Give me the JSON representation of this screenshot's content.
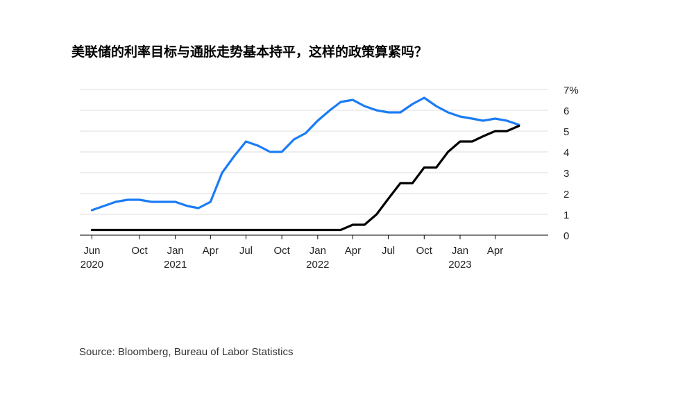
{
  "title": "美联储的利率目标与通胀走势基本持平，这样的政策算紧吗？",
  "source": "Source: Bloomberg, Bureau of Labor Statistics",
  "chart_data": {
    "type": "line",
    "y_unit_suffix": "%",
    "ylim": [
      0,
      7
    ],
    "yticks": [
      0,
      1,
      2,
      3,
      4,
      5,
      6,
      7
    ],
    "xlim": [
      "2020-05-01",
      "2023-08-15"
    ],
    "xticks": [
      {
        "date": "2020-06-01",
        "label": "Jun",
        "year": "2020"
      },
      {
        "date": "2020-10-01",
        "label": "Oct",
        "year": ""
      },
      {
        "date": "2021-01-01",
        "label": "Jan",
        "year": "2021"
      },
      {
        "date": "2021-04-01",
        "label": "Apr",
        "year": ""
      },
      {
        "date": "2021-07-01",
        "label": "Jul",
        "year": ""
      },
      {
        "date": "2021-10-01",
        "label": "Oct",
        "year": ""
      },
      {
        "date": "2022-01-01",
        "label": "Jan",
        "year": "2022"
      },
      {
        "date": "2022-04-01",
        "label": "Apr",
        "year": ""
      },
      {
        "date": "2022-07-01",
        "label": "Jul",
        "year": ""
      },
      {
        "date": "2022-10-01",
        "label": "Oct",
        "year": ""
      },
      {
        "date": "2023-01-01",
        "label": "Jan",
        "year": "2023"
      },
      {
        "date": "2023-04-01",
        "label": "Apr",
        "year": ""
      }
    ],
    "grid": true,
    "series": [
      {
        "color": "#1a7cf5",
        "points": [
          [
            "2020-06-01",
            1.2
          ],
          [
            "2020-08-01",
            1.6
          ],
          [
            "2020-09-01",
            1.7
          ],
          [
            "2020-10-01",
            1.7
          ],
          [
            "2020-11-01",
            1.6
          ],
          [
            "2020-12-01",
            1.6
          ],
          [
            "2021-01-01",
            1.6
          ],
          [
            "2021-02-01",
            1.4
          ],
          [
            "2021-03-01",
            1.3
          ],
          [
            "2021-04-01",
            1.6
          ],
          [
            "2021-05-01",
            3.0
          ],
          [
            "2021-06-01",
            3.8
          ],
          [
            "2021-07-01",
            4.5
          ],
          [
            "2021-08-01",
            4.3
          ],
          [
            "2021-09-01",
            4.0
          ],
          [
            "2021-10-01",
            4.0
          ],
          [
            "2021-11-01",
            4.6
          ],
          [
            "2021-12-01",
            4.9
          ],
          [
            "2022-01-01",
            5.5
          ],
          [
            "2022-02-01",
            6.0
          ],
          [
            "2022-03-01",
            6.4
          ],
          [
            "2022-04-01",
            6.5
          ],
          [
            "2022-05-01",
            6.2
          ],
          [
            "2022-06-01",
            6.0
          ],
          [
            "2022-07-01",
            5.9
          ],
          [
            "2022-08-01",
            5.9
          ],
          [
            "2022-09-01",
            6.3
          ],
          [
            "2022-10-01",
            6.6
          ],
          [
            "2022-11-01",
            6.2
          ],
          [
            "2022-12-01",
            5.9
          ],
          [
            "2023-01-01",
            5.7
          ],
          [
            "2023-02-01",
            5.6
          ],
          [
            "2023-03-01",
            5.5
          ],
          [
            "2023-04-01",
            5.6
          ],
          [
            "2023-05-01",
            5.5
          ],
          [
            "2023-06-01",
            5.3
          ]
        ]
      },
      {
        "color": "#000000",
        "points": [
          [
            "2020-06-01",
            0.25
          ],
          [
            "2022-03-01",
            0.25
          ],
          [
            "2022-04-01",
            0.5
          ],
          [
            "2022-05-01",
            0.5
          ],
          [
            "2022-06-01",
            1.0
          ],
          [
            "2022-07-01",
            1.75
          ],
          [
            "2022-08-01",
            2.5
          ],
          [
            "2022-09-01",
            2.5
          ],
          [
            "2022-10-01",
            3.25
          ],
          [
            "2022-11-01",
            3.25
          ],
          [
            "2022-12-01",
            4.0
          ],
          [
            "2023-01-01",
            4.5
          ],
          [
            "2023-02-01",
            4.5
          ],
          [
            "2023-03-01",
            4.75
          ],
          [
            "2023-04-01",
            5.0
          ],
          [
            "2023-05-01",
            5.0
          ],
          [
            "2023-06-01",
            5.25
          ]
        ]
      }
    ]
  }
}
